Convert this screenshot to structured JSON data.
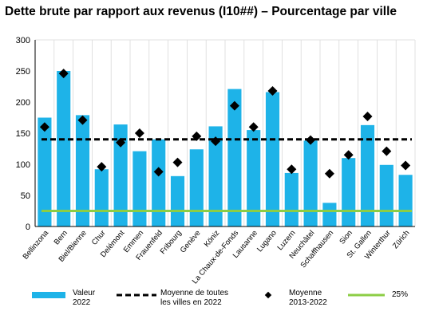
{
  "title": "Dette brute par rapport aux revenus (I10##) – Pourcentage par ville",
  "colors": {
    "bar": "#1eb3e8",
    "average_line": "#000000",
    "marker": "#000000",
    "line_25": "#8ccd45",
    "grid": "#d9d9d9"
  },
  "legend": {
    "valeur": [
      "Valeur",
      "2022"
    ],
    "moyenne_villes": [
      "Moyenne de toutes",
      "les villes en 2022"
    ],
    "moyenne_periode": [
      "Moyenne",
      "2013-2022"
    ],
    "line_25": "25%"
  },
  "chart_data": {
    "type": "bar",
    "title": "Dette brute par rapport aux revenus (I10##) – Pourcentage par ville",
    "categories": [
      "Bellinzona",
      "Bern",
      "Biel/Bienne",
      "Chur",
      "Delémont",
      "Emmen",
      "Frauenfeld",
      "Fribourg",
      "Genève",
      "Köniz",
      "La Chaux-de-Fonds",
      "Lausanne",
      "Lugano",
      "Luzern",
      "Neuchâtel",
      "Schaffhausen",
      "Sion",
      "St. Gallen",
      "Winterthur",
      "Zürich"
    ],
    "series": [
      {
        "name": "Valeur 2022",
        "kind": "bar",
        "values": [
          175,
          250,
          179,
          92,
          164,
          121,
          140,
          81,
          124,
          161,
          221,
          155,
          216,
          86,
          138,
          38,
          110,
          163,
          99,
          83
        ]
      },
      {
        "name": "Moyenne 2013-2022",
        "kind": "marker",
        "values": [
          160,
          246,
          171,
          96,
          135,
          150,
          88,
          103,
          145,
          137,
          194,
          160,
          218,
          92,
          139,
          85,
          115,
          177,
          121,
          98
        ]
      },
      {
        "name": "Moyenne de toutes les villes en 2022",
        "kind": "hline",
        "value": 140
      },
      {
        "name": "25%",
        "kind": "hline",
        "value": 25
      }
    ],
    "ylim": [
      0,
      300
    ],
    "yticks": [
      0,
      50,
      100,
      150,
      200,
      250,
      300
    ],
    "grid": "vertical",
    "legend_position": "bottom"
  }
}
